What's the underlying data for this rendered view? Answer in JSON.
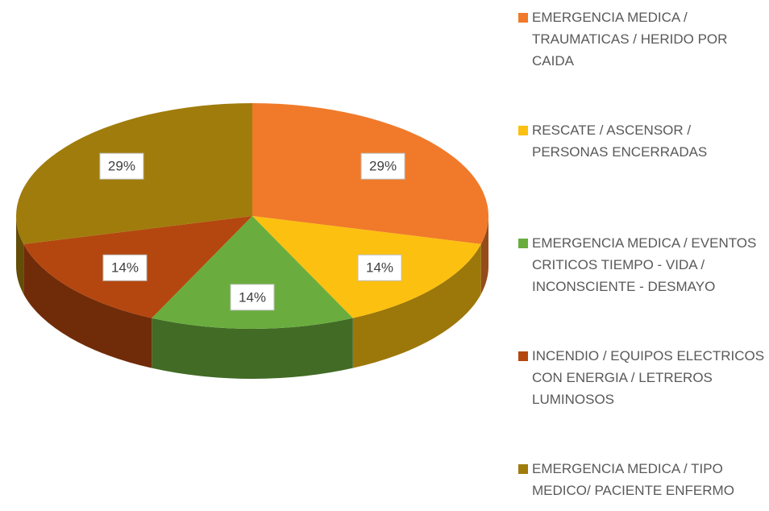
{
  "chart_data": {
    "type": "pie",
    "categories": [
      "EMERGENCIA MEDICA / TRAUMATICAS / HERIDO POR CAIDA",
      "RESCATE / ASCENSOR / PERSONAS ENCERRADAS",
      "EMERGENCIA MEDICA / EVENTOS CRITICOS TIEMPO - VIDA / INCONSCIENTE - DESMAYO",
      "INCENDIO / EQUIPOS ELECTRICOS CON ENERGIA / LETREROS LUMINOSOS",
      "EMERGENCIA MEDICA / TIPO MEDICO/ PACIENTE ENFERMO"
    ],
    "values": [
      29,
      14,
      14,
      14,
      29
    ],
    "value_labels": [
      "29%",
      "14%",
      "14%",
      "14%",
      "29%"
    ],
    "colors": [
      "#f07a2a",
      "#fcc010",
      "#6aad3e",
      "#b4470f",
      "#a07c0c"
    ],
    "legend": "right"
  }
}
